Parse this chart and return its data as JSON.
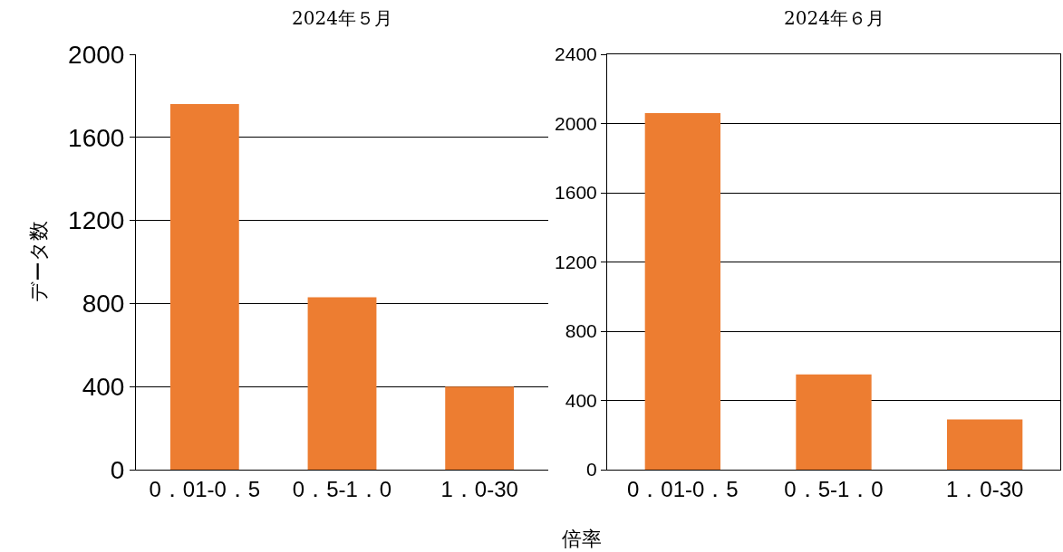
{
  "chart_data": [
    {
      "type": "bar",
      "title": "2024年５月",
      "ylabel": "データ数",
      "categories": [
        "0．01-0．5",
        "0．5-1．0",
        "1．0-30"
      ],
      "values": [
        1760,
        830,
        400
      ],
      "color": "#ed7d31",
      "ylim": [
        0,
        2000
      ],
      "yticks": [
        0,
        400,
        800,
        1200,
        1600,
        2000
      ],
      "grid": "y"
    },
    {
      "type": "bar",
      "title": "2024年６月",
      "xlabel": "倍率",
      "categories": [
        "0．01-0．5",
        "0．5-1．0",
        "1．0-30"
      ],
      "values": [
        2060,
        550,
        290
      ],
      "color": "#ed7d31",
      "ylim": [
        0,
        2400
      ],
      "yticks": [
        0,
        400,
        800,
        1200,
        1600,
        2000,
        2400
      ],
      "grid": "y"
    }
  ]
}
